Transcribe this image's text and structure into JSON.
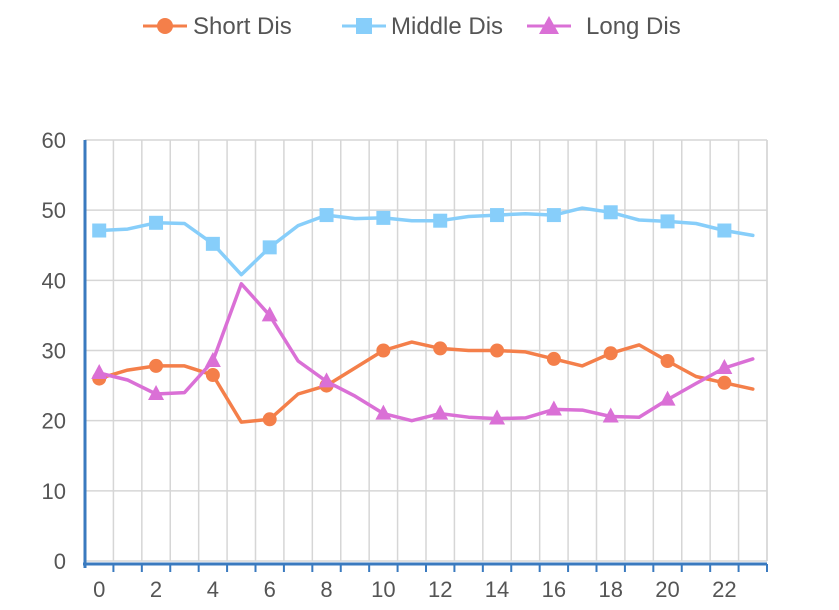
{
  "chart_data": {
    "type": "line",
    "title": "",
    "xlabel": "",
    "ylabel": "",
    "x": [
      0,
      1,
      2,
      3,
      4,
      5,
      6,
      7,
      8,
      9,
      10,
      11,
      12,
      13,
      14,
      15,
      16,
      17,
      18,
      19,
      20,
      21,
      22,
      23
    ],
    "xlim": [
      -0.5,
      23.5
    ],
    "ylim": [
      0,
      60
    ],
    "xticks": [
      0,
      2,
      4,
      6,
      8,
      10,
      12,
      14,
      16,
      18,
      20,
      22
    ],
    "yticks": [
      0,
      10,
      20,
      30,
      40,
      50,
      60
    ],
    "grid": true,
    "legend_position": "top-center",
    "series": [
      {
        "name": "Short Dis",
        "color": "#F47F4A",
        "marker": "circle",
        "values": [
          26.0,
          27.2,
          27.8,
          27.8,
          26.5,
          19.8,
          20.2,
          23.8,
          25.0,
          27.5,
          30.0,
          31.2,
          30.3,
          30.0,
          30.0,
          29.8,
          28.8,
          27.8,
          29.6,
          30.8,
          28.5,
          26.3,
          25.4,
          24.5
        ]
      },
      {
        "name": "Middle Dis",
        "color": "#87CEFA",
        "marker": "square",
        "values": [
          47.1,
          47.3,
          48.2,
          48.1,
          45.2,
          40.8,
          44.7,
          47.8,
          49.3,
          48.8,
          48.9,
          48.5,
          48.5,
          49.1,
          49.3,
          49.5,
          49.3,
          50.3,
          49.7,
          48.6,
          48.4,
          48.1,
          47.1,
          46.4
        ]
      },
      {
        "name": "Long Dis",
        "color": "#DA70D6",
        "marker": "triangle",
        "values": [
          26.8,
          25.8,
          23.8,
          24.0,
          28.5,
          39.5,
          35.0,
          28.5,
          25.6,
          23.5,
          21.0,
          20.0,
          21.0,
          20.5,
          20.3,
          20.4,
          21.6,
          21.5,
          20.6,
          20.5,
          23.0,
          25.3,
          27.5,
          28.8
        ]
      }
    ]
  }
}
